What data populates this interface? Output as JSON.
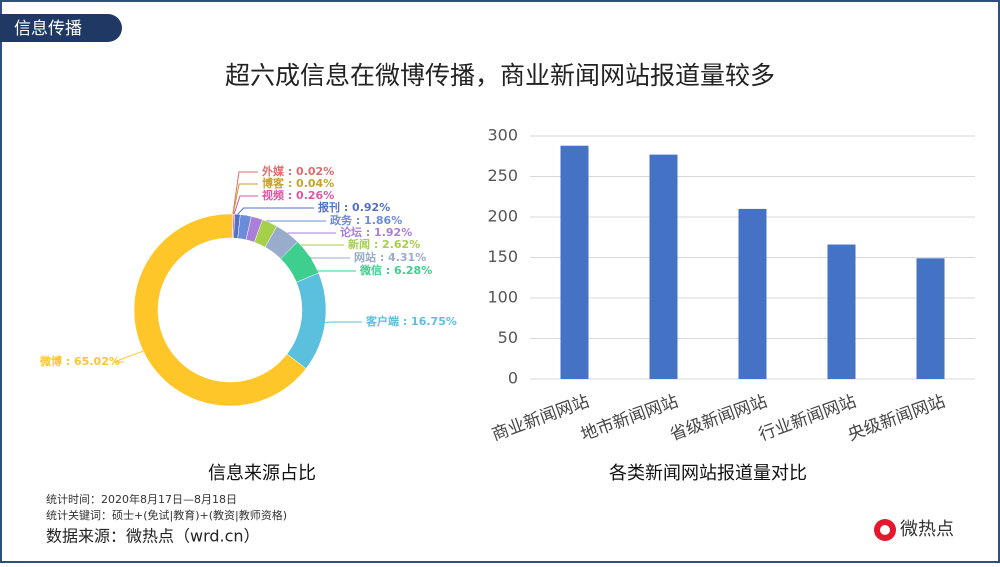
{
  "section_tag": "信息传播",
  "title": "超六成信息在微博传播，商业新闻网站报道量较多",
  "chart_data": [
    {
      "type": "donut",
      "title": "信息来源占比",
      "values": [
        0.02,
        0.04,
        0.26,
        0.92,
        1.86,
        1.92,
        2.62,
        4.31,
        6.28,
        16.75,
        65.02
      ],
      "value_labels": [
        "外媒 : 0.02%",
        "博客 : 0.04%",
        "视频 : 0.26%",
        "报刊 : 0.92%",
        "政务 : 1.86%",
        "论坛 : 1.92%",
        "新闻 : 2.62%",
        "网站 : 4.31%",
        "微信 : 6.28%",
        "客户端 : 16.75%",
        "微博 : 65.02%"
      ],
      "colors": [
        "#e06c6c",
        "#c9a227",
        "#e056a0",
        "#5470c6",
        "#6a8cdb",
        "#a97fd9",
        "#a6cf4a",
        "#9aaccc",
        "#3ecf8e",
        "#5bc0de",
        "#ffc629"
      ]
    },
    {
      "type": "bar",
      "title": "各类新闻网站报道量对比",
      "categories": [
        "商业新闻网站",
        "地市新闻网站",
        "省级新闻网站",
        "行业新闻网站",
        "央级新闻网站"
      ],
      "values": [
        288,
        277,
        210,
        166,
        149
      ],
      "color": "#4472c4",
      "ylim": [
        0,
        300
      ],
      "yticks": [
        0,
        50,
        100,
        150,
        200,
        250,
        300
      ],
      "grid": true
    }
  ],
  "footer": {
    "period": "统计时间：2020年8月17日—8月18日",
    "keywords": "统计关键词：硕士+(免试|教育)+(教资|教师资格)",
    "source": "数据来源：微热点（wrd.cn）"
  },
  "logo": "微热点"
}
